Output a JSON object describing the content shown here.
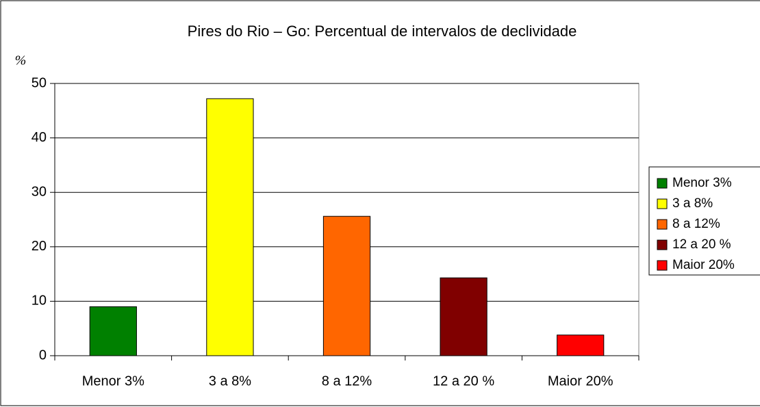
{
  "chart_data": {
    "type": "bar",
    "title": "Pires do Rio – Go:  Percentual de intervalos de declividade",
    "y_label": "%",
    "categories": [
      "Menor 3%",
      "3 a 8%",
      "8 a 12%",
      "12 a 20 %",
      "Maior 20%"
    ],
    "values": [
      9.0,
      47.2,
      25.6,
      14.3,
      3.8
    ],
    "colors": [
      "#008000",
      "#ffff00",
      "#ff6600",
      "#800000",
      "#ff0000"
    ],
    "ylim": [
      0,
      50
    ],
    "yticks": [
      0,
      10,
      20,
      30,
      40,
      50
    ],
    "grid": true,
    "legend": "right"
  }
}
